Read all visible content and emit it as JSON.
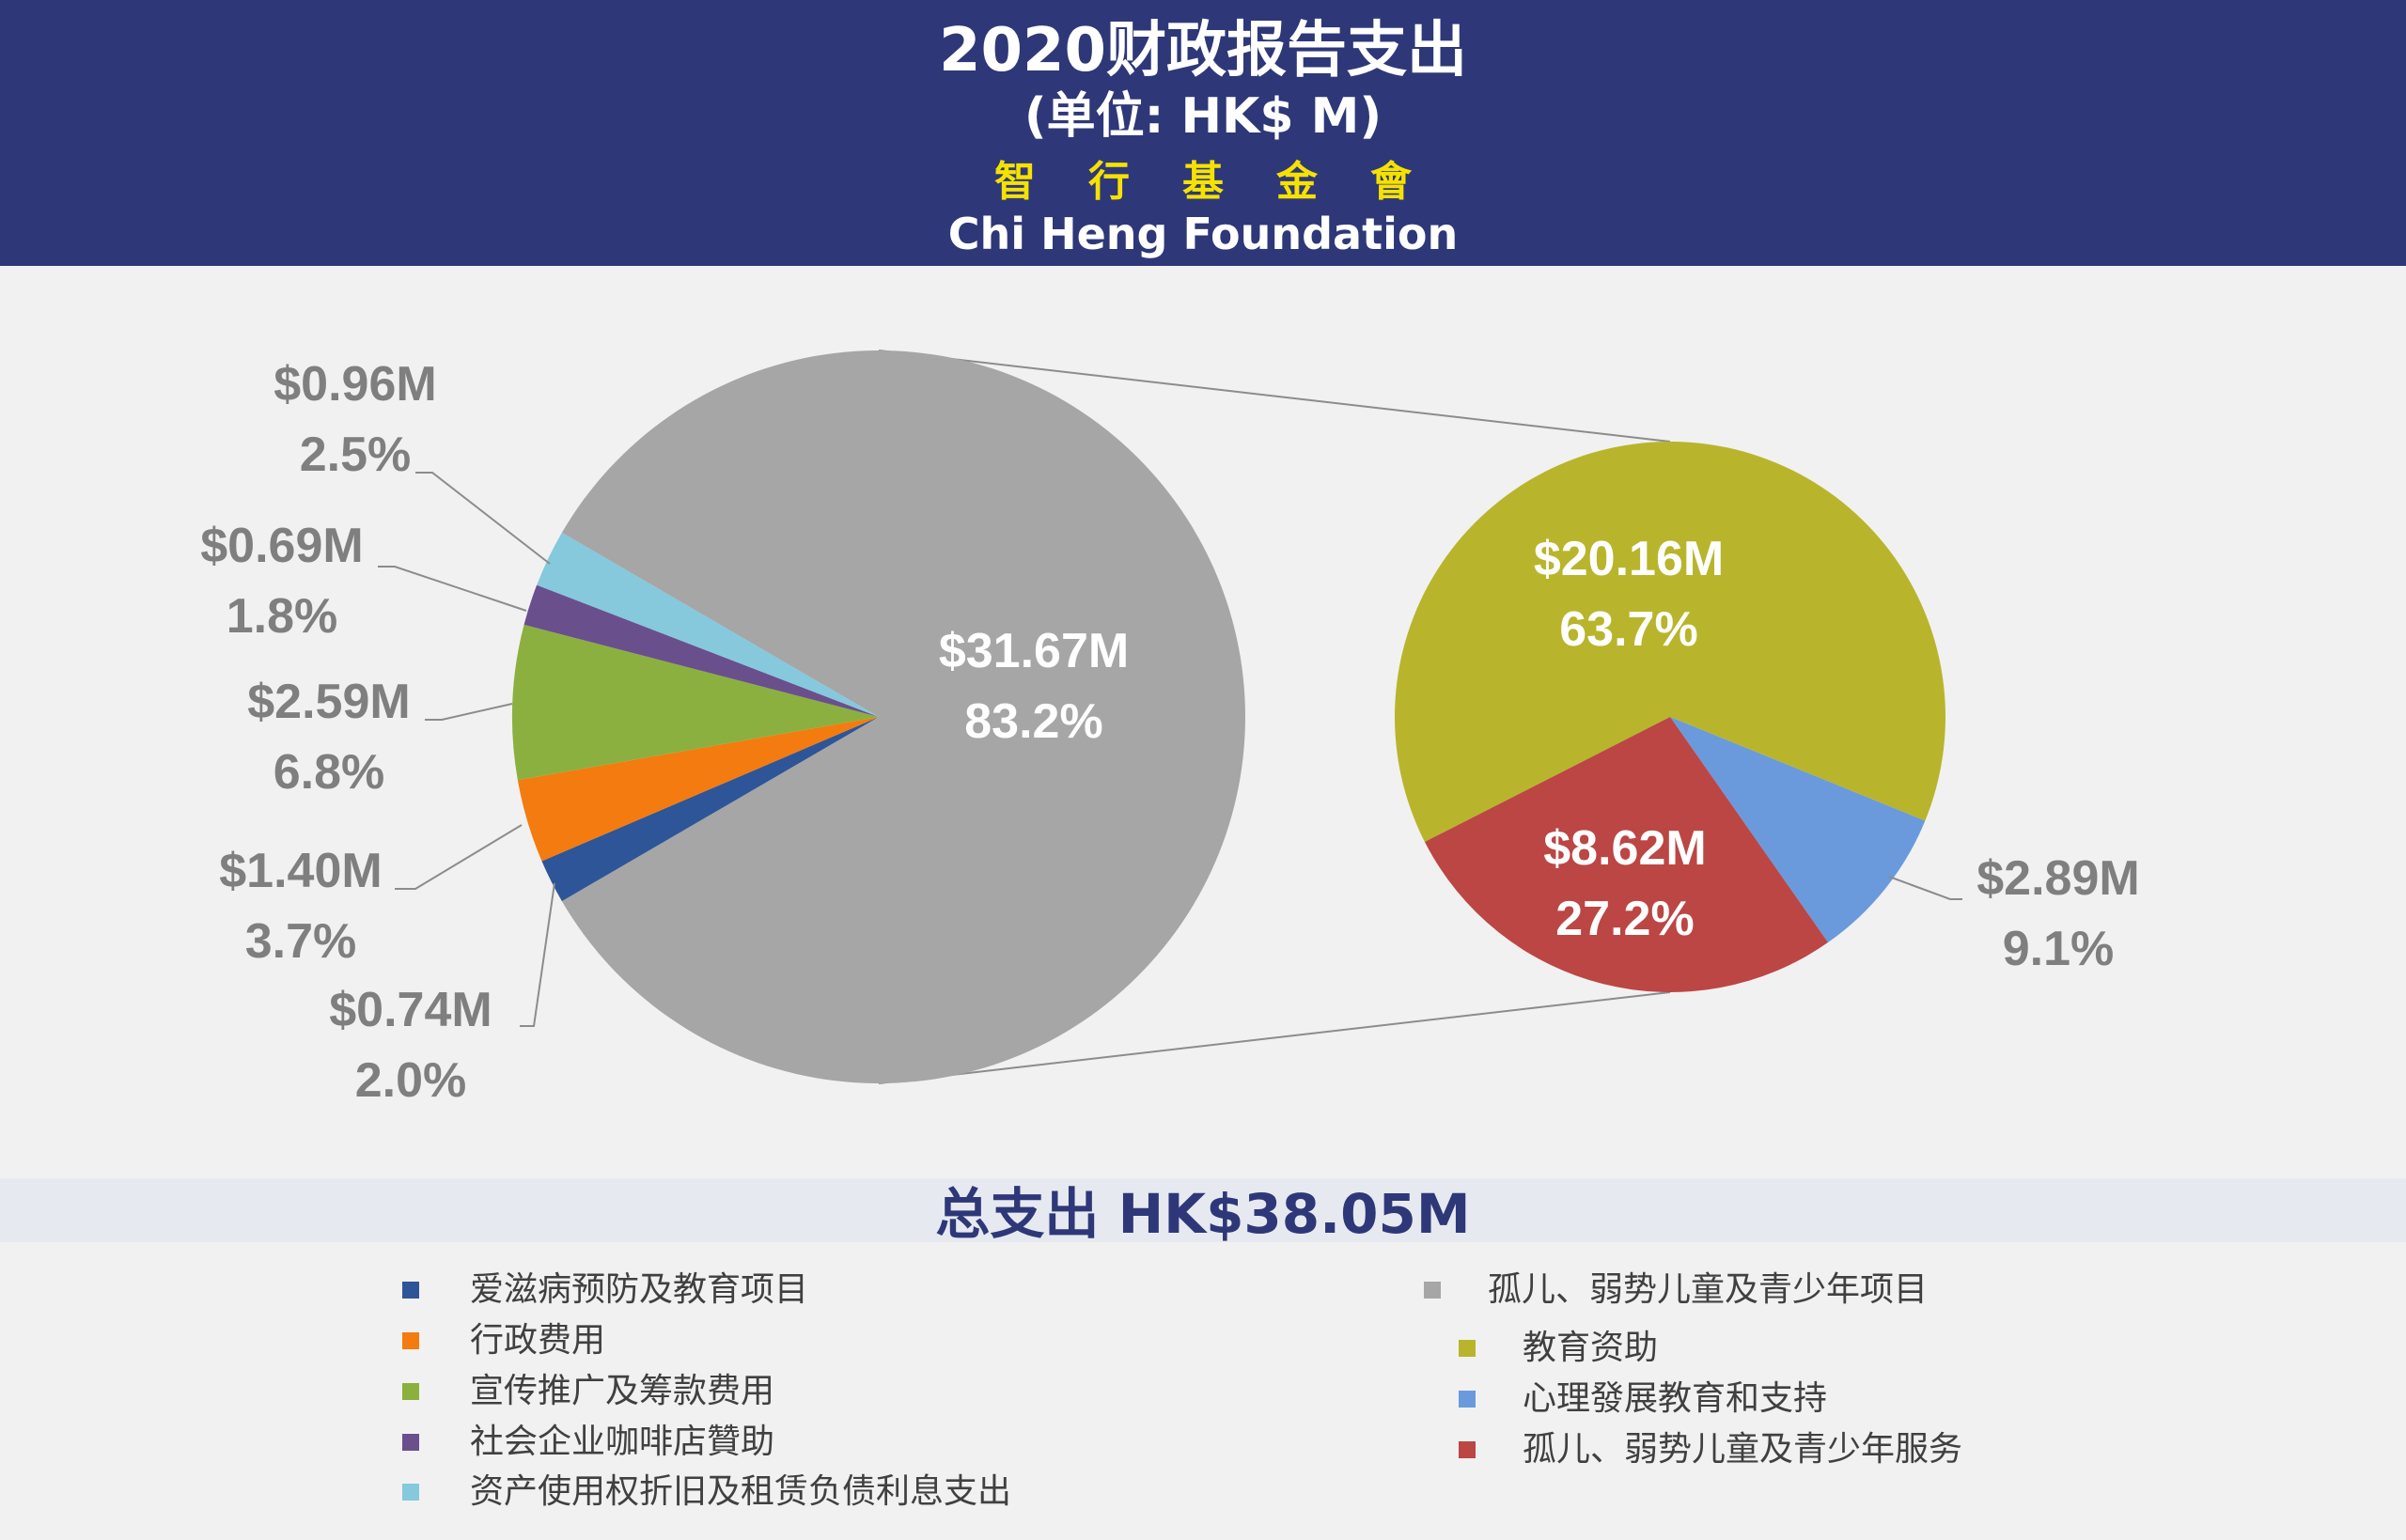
{
  "header": {
    "title": "2020财政报告支出",
    "subtitle": "(单位: HK$ M)",
    "org_cn": "智行基金會",
    "org_en": "Chi Heng Foundation"
  },
  "total_label": "总支出 HK$38.05M",
  "chart_data": [
    {
      "type": "pie",
      "slices": [
        {
          "name": "孤儿、弱势儿童及青少年项目",
          "value": 31.67,
          "amount_label": "$31.67M",
          "percent_label": "83.2%",
          "color": "#a6a6a6"
        },
        {
          "name": "爱滋病预防及教育项目",
          "value": 0.74,
          "amount_label": "$0.74M",
          "percent_label": "2.0%",
          "color": "#2e5597"
        },
        {
          "name": "行政费用",
          "value": 1.4,
          "amount_label": "$1.40M",
          "percent_label": "3.7%",
          "color": "#f47b0f"
        },
        {
          "name": "宣传推广及筹款费用",
          "value": 2.59,
          "amount_label": "$2.59M",
          "percent_label": "6.8%",
          "color": "#8bb03f"
        },
        {
          "name": "社会企业咖啡店赞助",
          "value": 0.69,
          "amount_label": "$0.69M",
          "percent_label": "1.8%",
          "color": "#6a4f8d"
        },
        {
          "name": "资产使用权折旧及租赁负债利息支出",
          "value": 0.96,
          "amount_label": "$0.96M",
          "percent_label": "2.5%",
          "color": "#86c8dc"
        }
      ]
    },
    {
      "type": "pie",
      "breakdown_of": "孤儿、弱势儿童及青少年项目",
      "slices": [
        {
          "name": "教育资助",
          "value": 20.16,
          "amount_label": "$20.16M",
          "percent_label": "63.7%",
          "color": "#b8b52c"
        },
        {
          "name": "心理發展教育和支持",
          "value": 2.89,
          "amount_label": "$2.89M",
          "percent_label": "9.1%",
          "color": "#6a9adc"
        },
        {
          "name": "孤儿、弱势儿童及青少年服务",
          "value": 8.62,
          "amount_label": "$8.62M",
          "percent_label": "27.2%",
          "color": "#bb4644"
        }
      ]
    }
  ],
  "legend": {
    "left": [
      {
        "label": "爱滋病预防及教育项目",
        "color": "#2e5597"
      },
      {
        "label": "行政费用",
        "color": "#f47b0f"
      },
      {
        "label": "宣传推广及筹款费用",
        "color": "#8bb03f"
      },
      {
        "label": "社会企业咖啡店贊助",
        "color": "#6a4f8d"
      },
      {
        "label": "资产使用权折旧及租赁负债利息支出",
        "color": "#86c8dc"
      }
    ],
    "right": [
      {
        "label": "孤儿、弱势儿童及青少年项目",
        "color": "#a6a6a6"
      },
      {
        "label": "教育资助",
        "color": "#b8b52c"
      },
      {
        "label": "心理發展教育和支持",
        "color": "#6a9adc"
      },
      {
        "label": "孤儿、弱势儿童及青少年服务",
        "color": "#bb4644"
      }
    ]
  }
}
